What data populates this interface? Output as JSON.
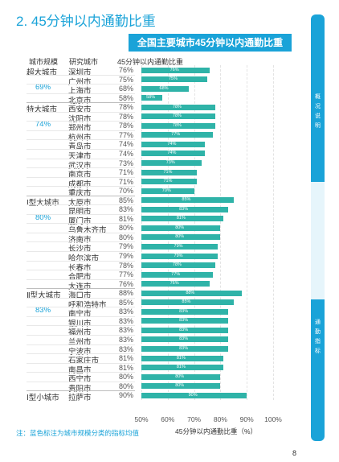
{
  "page": {
    "section_title": "2. 45分钟以内通勤比重",
    "note": "注：蓝色标注为城市规模分类的指标均值",
    "page_number": "8"
  },
  "sidebar": {
    "top_label": [
      "概",
      "况",
      "说",
      "明"
    ],
    "bottom_label": [
      "通",
      "勤",
      "指",
      "标"
    ]
  },
  "chart_data": {
    "type": "bar",
    "orientation": "horizontal",
    "title": "全国主要城市45分钟以内通勤比重",
    "column_headers": {
      "tier": "城市规模",
      "city": "研究城市",
      "value": "45分钟以内通勤比重"
    },
    "xlabel": "45分钟以内通勤比重（%）",
    "xlim": [
      50,
      100
    ],
    "xticks": [
      "50%",
      "60%",
      "70%",
      "80%",
      "90%",
      "100%"
    ],
    "bar_color": "#2fb3a8",
    "tiers": [
      {
        "name": "超大城市",
        "avg": "69%",
        "cities": [
          {
            "city": "深圳市",
            "value": 76,
            "label": "76%"
          },
          {
            "city": "广州市",
            "value": 75,
            "label": "75%"
          },
          {
            "city": "上海市",
            "value": 68,
            "label": "68%"
          },
          {
            "city": "北京市",
            "value": 58,
            "label": "58%"
          }
        ]
      },
      {
        "name": "特大城市",
        "avg": "74%",
        "cities": [
          {
            "city": "西安市",
            "value": 78,
            "label": "78%"
          },
          {
            "city": "沈阳市",
            "value": 78,
            "label": "78%"
          },
          {
            "city": "郑州市",
            "value": 78,
            "label": "78%"
          },
          {
            "city": "杭州市",
            "value": 77,
            "label": "77%"
          },
          {
            "city": "青岛市",
            "value": 74,
            "label": "74%"
          },
          {
            "city": "天津市",
            "value": 74,
            "label": "74%"
          },
          {
            "city": "武汉市",
            "value": 73,
            "label": "73%"
          },
          {
            "city": "南京市",
            "value": 71,
            "label": "71%"
          },
          {
            "city": "成都市",
            "value": 71,
            "label": "71%"
          },
          {
            "city": "重庆市",
            "value": 70,
            "label": "70%"
          }
        ]
      },
      {
        "name": "Ⅰ型大城市",
        "avg": "80%",
        "cities": [
          {
            "city": "太原市",
            "value": 85,
            "label": "85%"
          },
          {
            "city": "昆明市",
            "value": 83,
            "label": "83%"
          },
          {
            "city": "厦门市",
            "value": 81,
            "label": "81%"
          },
          {
            "city": "乌鲁木齐市",
            "value": 80,
            "label": "80%"
          },
          {
            "city": "济南市",
            "value": 80,
            "label": "80%"
          },
          {
            "city": "长沙市",
            "value": 79,
            "label": "79%"
          },
          {
            "city": "哈尔滨市",
            "value": 79,
            "label": "79%"
          },
          {
            "city": "长春市",
            "value": 78,
            "label": "78%"
          },
          {
            "city": "合肥市",
            "value": 77,
            "label": "77%"
          },
          {
            "city": "大连市",
            "value": 76,
            "label": "76%"
          }
        ]
      },
      {
        "name": "Ⅱ型大城市",
        "avg": "83%",
        "cities": [
          {
            "city": "海口市",
            "value": 88,
            "label": "88%"
          },
          {
            "city": "呼和浩特市",
            "value": 85,
            "label": "85%"
          },
          {
            "city": "南宁市",
            "value": 83,
            "label": "83%"
          },
          {
            "city": "银川市",
            "value": 83,
            "label": "83%"
          },
          {
            "city": "福州市",
            "value": 83,
            "label": "83%"
          },
          {
            "city": "兰州市",
            "value": 83,
            "label": "83%"
          },
          {
            "city": "宁波市",
            "value": 83,
            "label": "83%"
          },
          {
            "city": "石家庄市",
            "value": 81,
            "label": "81%"
          },
          {
            "city": "南昌市",
            "value": 81,
            "label": "81%"
          },
          {
            "city": "西宁市",
            "value": 80,
            "label": "80%"
          },
          {
            "city": "贵阳市",
            "value": 80,
            "label": "80%"
          }
        ]
      },
      {
        "name": "Ⅰ型小城市",
        "avg": "",
        "cities": [
          {
            "city": "拉萨市",
            "value": 90,
            "label": "90%"
          }
        ]
      }
    ]
  }
}
